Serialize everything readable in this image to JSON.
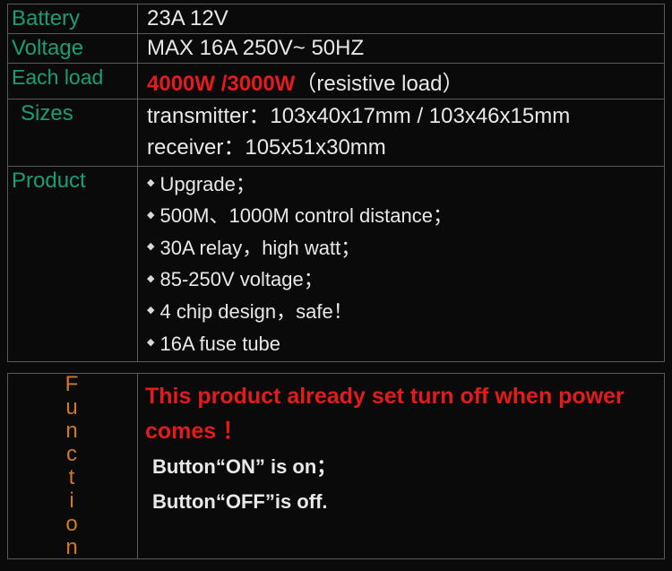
{
  "rows": {
    "battery": {
      "label": "Battery",
      "value": "23A  12V"
    },
    "voltage": {
      "label": "Voltage",
      "value": "MAX 16A 250V~   50HZ"
    },
    "eachload": {
      "label": "Each load",
      "red": "4000W /3000W",
      "note": "（resistive load）"
    },
    "sizes": {
      "label": "Sizes",
      "line1": "transmitter：103x40x17mm    /  103x46x15mm",
      "line2": "receiver：105x51x30mm"
    },
    "product": {
      "label": "Product",
      "items": [
        "Upgrade；",
        "500M、1000M control distance；",
        "30A relay，high watt；",
        "85-250V voltage；",
        "4 chip design，safe！",
        "16A  fuse tube"
      ]
    }
  },
  "function": {
    "label": "Function",
    "alert": "This product already set turn off when power comes ！",
    "btn_on": "Button“ON” is on；",
    "btn_off": "Button“OFF”is off."
  },
  "colors": {
    "bg": "#0a0a0a",
    "border": "#5a5a5a",
    "label_green": "#1a9d78",
    "text": "#e8e8e8",
    "red": "#e41b1b",
    "orange": "#d07a1e"
  }
}
